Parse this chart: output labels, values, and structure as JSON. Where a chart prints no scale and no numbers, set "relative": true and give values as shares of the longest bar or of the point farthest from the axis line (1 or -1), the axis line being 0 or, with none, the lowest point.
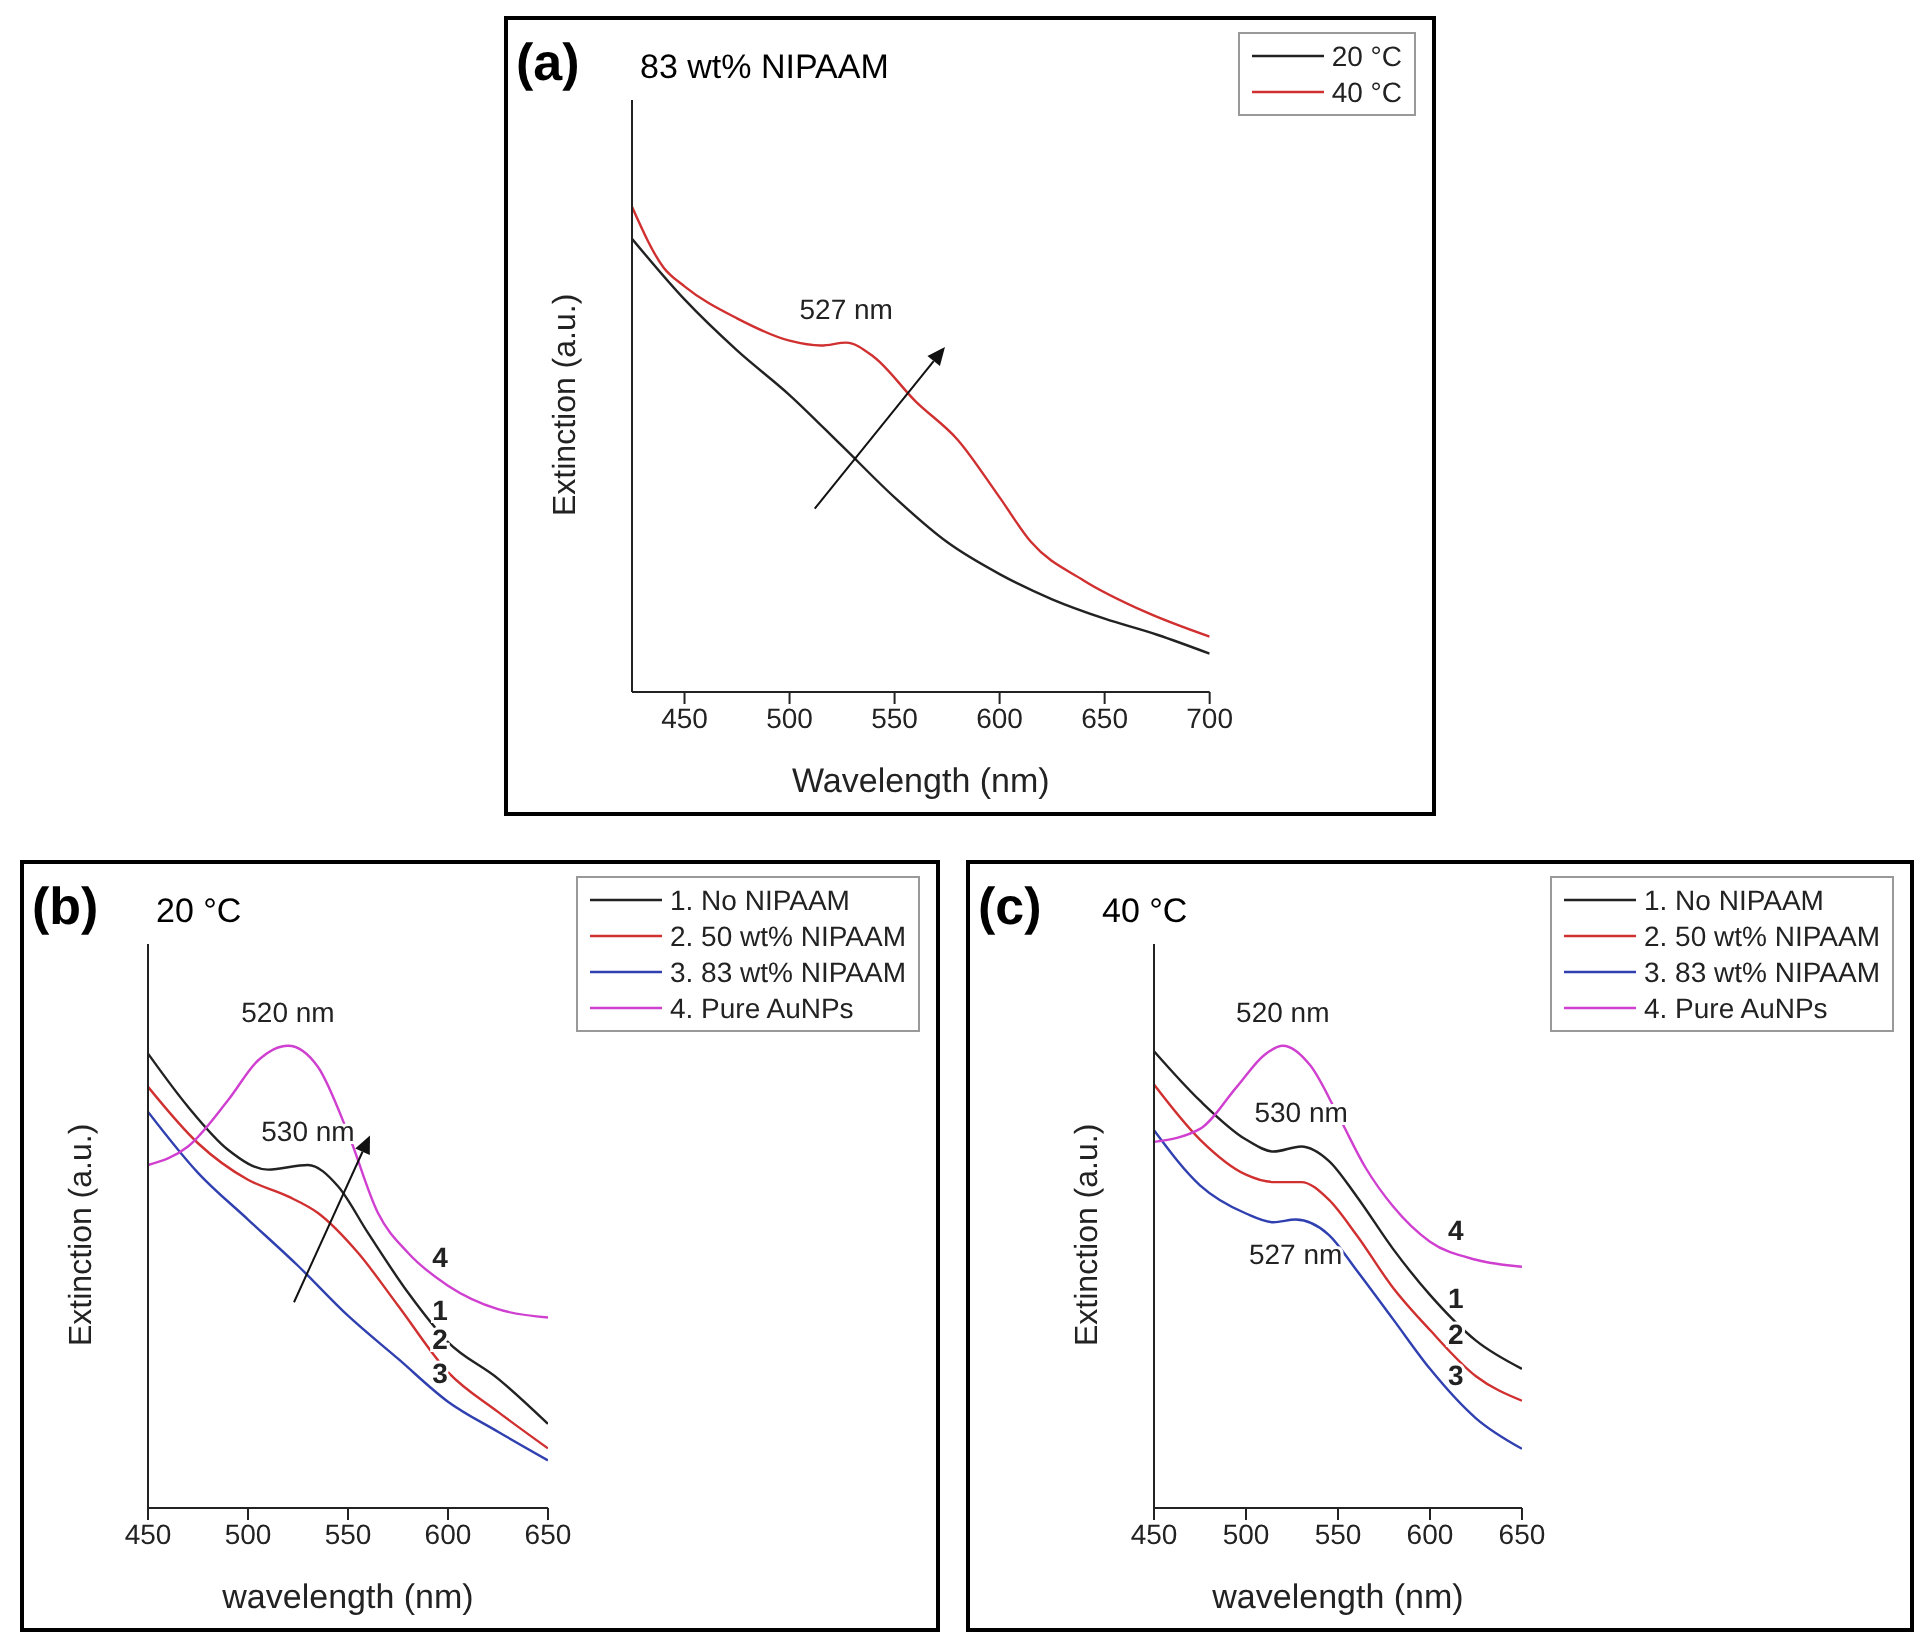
{
  "chart_data": [
    {
      "type": "line",
      "title": "(a)",
      "subtitle": "83 wt% NIPAAM",
      "xlabel": "Wavelength (nm)",
      "ylabel": "Extinction (a.u.)",
      "relative": true,
      "xlim": [
        425,
        700
      ],
      "xticks": [
        450,
        500,
        550,
        600,
        650,
        700
      ],
      "tick_labels": "x",
      "legend": "top right",
      "grid": false,
      "marker": "none",
      "line_style": "solid",
      "series": [
        {
          "name": "20 °C",
          "color": "#222222",
          "x": [
            425,
            450,
            475,
            500,
            525,
            550,
            575,
            600,
            625,
            650,
            675,
            700
          ],
          "values": [
            0.934,
            0.809,
            0.704,
            0.612,
            0.507,
            0.401,
            0.309,
            0.243,
            0.191,
            0.151,
            0.118,
            0.079
          ]
        },
        {
          "name": "40 °C",
          "color": "#d03030",
          "x": [
            425,
            440,
            450,
            475,
            500,
            515,
            527,
            540,
            560,
            580,
            600,
            615,
            640,
            670,
            700
          ],
          "values": [
            1.0,
            0.875,
            0.836,
            0.77,
            0.724,
            0.714,
            0.72,
            0.691,
            0.599,
            0.52,
            0.401,
            0.309,
            0.23,
            0.164,
            0.114
          ]
        }
      ],
      "annotations": [
        {
          "text": "527 nm",
          "x": 527,
          "y": 0.72
        }
      ]
    },
    {
      "type": "line",
      "title": "(b)",
      "subtitle": "20 °C",
      "xlabel": "wavelength (nm)",
      "ylabel": "Extinction (a.u.)",
      "relative": true,
      "xlim": [
        450,
        650
      ],
      "xticks": [
        450,
        500,
        550,
        600,
        650
      ],
      "tick_labels": "x",
      "legend": "top right",
      "grid": false,
      "marker": "none",
      "line_style": "solid",
      "series": [
        {
          "name": "1. No NIPAAM",
          "color": "#222222",
          "x": [
            450,
            470,
            490,
            510,
            530,
            545,
            560,
            580,
            600,
            625,
            650
          ],
          "values": [
            0.983,
            0.868,
            0.775,
            0.732,
            0.742,
            0.696,
            0.595,
            0.466,
            0.359,
            0.28,
            0.182
          ]
        },
        {
          "name": "2. 50 wt% NIPAAM",
          "color": "#d03030",
          "x": [
            450,
            475,
            500,
            520,
            535,
            555,
            575,
            600,
            625,
            650
          ],
          "values": [
            0.911,
            0.789,
            0.71,
            0.674,
            0.638,
            0.552,
            0.438,
            0.294,
            0.208,
            0.129
          ]
        },
        {
          "name": "3. 83 wt% NIPAAM",
          "color": "#3040b0",
          "x": [
            450,
            475,
            500,
            525,
            550,
            575,
            600,
            625,
            650
          ],
          "values": [
            0.857,
            0.725,
            0.624,
            0.524,
            0.416,
            0.323,
            0.23,
            0.165,
            0.103
          ]
        },
        {
          "name": "4. Pure AuNPs",
          "color": "#d040d0",
          "x": [
            450,
            470,
            490,
            505,
            520,
            535,
            550,
            565,
            580,
            600,
            625,
            650
          ],
          "values": [
            0.742,
            0.782,
            0.882,
            0.968,
            1.0,
            0.954,
            0.811,
            0.638,
            0.552,
            0.481,
            0.43,
            0.412
          ]
        }
      ],
      "annotations": [
        {
          "text": "520 nm",
          "x": 520,
          "y": 1.0
        },
        {
          "text": "530 nm",
          "x": 530,
          "y": 0.742
        },
        {
          "text": "4",
          "x": 596,
          "y": 0.495
        },
        {
          "text": "1",
          "x": 596,
          "y": 0.38
        },
        {
          "text": "2",
          "x": 596,
          "y": 0.317
        },
        {
          "text": "3",
          "x": 596,
          "y": 0.245
        }
      ]
    },
    {
      "type": "line",
      "title": "(c)",
      "subtitle": "40 °C",
      "xlabel": "wavelength (nm)",
      "ylabel": "Extinction (a.u.)",
      "relative": true,
      "xlim": [
        450,
        650
      ],
      "xticks": [
        450,
        500,
        550,
        600,
        650
      ],
      "tick_labels": "x",
      "legend": "top right",
      "grid": false,
      "marker": "none",
      "line_style": "solid",
      "series": [
        {
          "name": "1. No NIPAAM",
          "color": "#222222",
          "x": [
            450,
            475,
            500,
            515,
            530,
            545,
            560,
            580,
            600,
            625,
            650
          ],
          "values": [
            0.988,
            0.881,
            0.797,
            0.771,
            0.782,
            0.751,
            0.675,
            0.56,
            0.461,
            0.362,
            0.301
          ]
        },
        {
          "name": "2. 50 wt% NIPAAM",
          "color": "#d03030",
          "x": [
            450,
            475,
            500,
            515,
            530,
            545,
            560,
            580,
            600,
            625,
            650
          ],
          "values": [
            0.916,
            0.797,
            0.721,
            0.705,
            0.705,
            0.667,
            0.591,
            0.476,
            0.385,
            0.285,
            0.232
          ]
        },
        {
          "name": "3. 83 wt% NIPAAM",
          "color": "#3040b0",
          "x": [
            450,
            475,
            500,
            515,
            527,
            545,
            560,
            580,
            600,
            625,
            650
          ],
          "values": [
            0.817,
            0.698,
            0.637,
            0.618,
            0.624,
            0.591,
            0.515,
            0.408,
            0.301,
            0.194,
            0.128
          ]
        },
        {
          "name": "4. Pure AuNPs",
          "color": "#d040d0",
          "x": [
            450,
            475,
            495,
            510,
            520,
            535,
            550,
            565,
            580,
            600,
            625,
            650
          ],
          "values": [
            0.792,
            0.82,
            0.911,
            0.98,
            1.0,
            0.957,
            0.85,
            0.736,
            0.652,
            0.576,
            0.537,
            0.522
          ]
        }
      ],
      "annotations": [
        {
          "text": "520 nm",
          "x": 520,
          "y": 1.0
        },
        {
          "text": "530 nm",
          "x": 530,
          "y": 0.782
        },
        {
          "text": "527 nm",
          "x": 527,
          "y": 0.624
        },
        {
          "text": "4",
          "x": 614,
          "y": 0.554
        },
        {
          "text": "1",
          "x": 614,
          "y": 0.406
        },
        {
          "text": "2",
          "x": 614,
          "y": 0.329
        },
        {
          "text": "3",
          "x": 614,
          "y": 0.241
        }
      ]
    }
  ]
}
